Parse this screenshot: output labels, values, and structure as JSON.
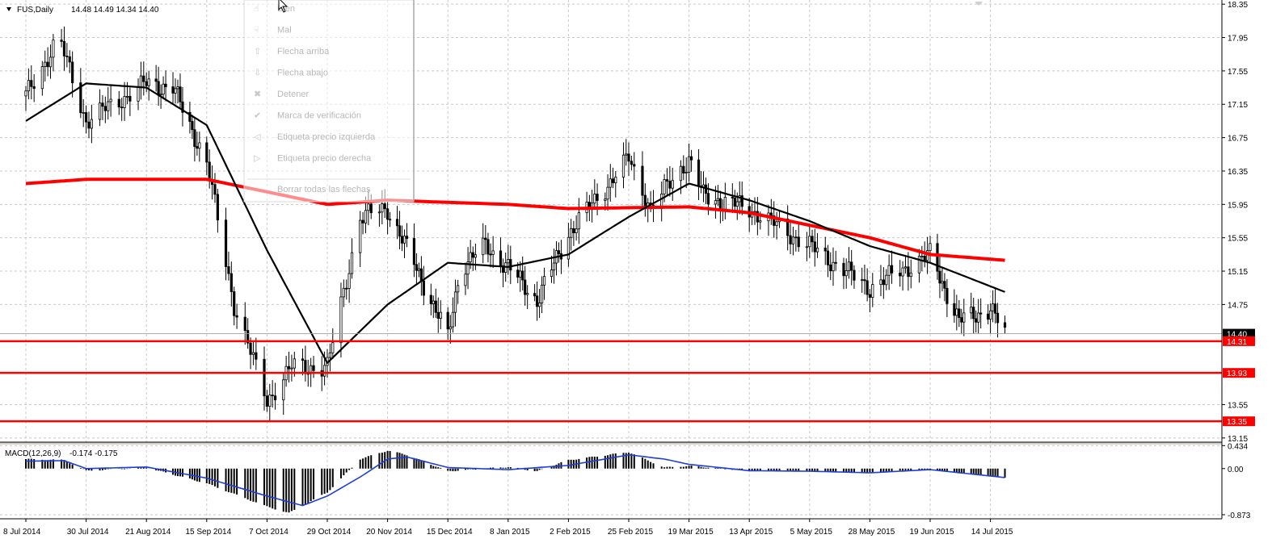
{
  "header": {
    "symbol": "FUS,Daily",
    "ohlc": "14.48 14.49 14.34 14.40",
    "collapse_icon": "triangle-down-icon"
  },
  "overlay_menu": {
    "items": [
      {
        "icon": "thumb-up-icon",
        "label": "Bien"
      },
      {
        "icon": "thumb-down-icon",
        "label": "Mal"
      },
      {
        "icon": "arrow-up-icon",
        "label": "Flecha arriba"
      },
      {
        "icon": "arrow-down-icon",
        "label": "Flecha abajo"
      },
      {
        "icon": "stop-icon",
        "label": "Detener"
      },
      {
        "icon": "check-icon",
        "label": "Marca de verificación"
      },
      {
        "icon": "price-label-left-icon",
        "label": "Etiqueta precio izquierda"
      },
      {
        "icon": "price-label-right-icon",
        "label": "Etiqueta precio derecha"
      },
      {
        "icon": "",
        "label": "Borrar todas las flechas"
      }
    ]
  },
  "chart_data": [
    {
      "type": "candlestick",
      "title": "FUS,Daily",
      "subtitle": "14.48 14.49 14.34 14.40",
      "x_tick_labels": [
        "8 Jul 2014",
        "30 Jul 2014",
        "21 Aug 2014",
        "15 Sep 2014",
        "7 Oct 2014",
        "29 Oct 2014",
        "20 Nov 2014",
        "15 Dec 2014",
        "8 Jan 2015",
        "2 Feb 2015",
        "25 Feb 2015",
        "19 Mar 2015",
        "13 Apr 2015",
        "5 May 2015",
        "28 May 2015",
        "19 Jun 2015",
        "14 Jul 2015"
      ],
      "y_tick_labels": [
        "18.35",
        "17.95",
        "17.55",
        "17.15",
        "16.75",
        "16.35",
        "15.95",
        "15.55",
        "15.15",
        "14.75",
        "14.40",
        "14.31",
        "13.93",
        "13.55",
        "13.35",
        "13.15"
      ],
      "ylim": [
        13.1,
        18.4
      ],
      "grid": true,
      "current_price": 14.4,
      "support_levels": [
        14.31,
        13.93,
        13.35
      ],
      "price_anchors": [
        {
          "x": "8 Jul 2014",
          "value": 17.25
        },
        {
          "x": "20 Jul 2014",
          "value": 17.95
        },
        {
          "x": "30 Jul 2014",
          "value": 16.95
        },
        {
          "x": "21 Aug 2014",
          "value": 17.4
        },
        {
          "x": "1 Sep 2014",
          "value": 17.35
        },
        {
          "x": "15 Sep 2014",
          "value": 16.45
        },
        {
          "x": "25 Sep 2014",
          "value": 14.75
        },
        {
          "x": "7 Oct 2014",
          "value": 13.6
        },
        {
          "x": "16 Oct 2014",
          "value": 14.0
        },
        {
          "x": "29 Oct 2014",
          "value": 14.0
        },
        {
          "x": "10 Nov 2014",
          "value": 15.8
        },
        {
          "x": "20 Nov 2014",
          "value": 15.9
        },
        {
          "x": "5 Dec 2014",
          "value": 15.0
        },
        {
          "x": "15 Dec 2014",
          "value": 14.35
        },
        {
          "x": "20 Dec 2014",
          "value": 15.2
        },
        {
          "x": "30 Dec 2014",
          "value": 15.45
        },
        {
          "x": "8 Jan 2015",
          "value": 15.2
        },
        {
          "x": "20 Jan 2015",
          "value": 14.8
        },
        {
          "x": "2 Feb 2015",
          "value": 15.6
        },
        {
          "x": "25 Feb 2015",
          "value": 16.5
        },
        {
          "x": "5 Mar 2015",
          "value": 15.9
        },
        {
          "x": "19 Mar 2015",
          "value": 16.5
        },
        {
          "x": "25 Mar 2015",
          "value": 16.05
        },
        {
          "x": "13 Apr 2015",
          "value": 15.9
        },
        {
          "x": "5 May 2015",
          "value": 15.45
        },
        {
          "x": "28 May 2015",
          "value": 14.95
        },
        {
          "x": "19 Jun 2015",
          "value": 15.35
        },
        {
          "x": "1 Jul 2015",
          "value": 14.55
        },
        {
          "x": "14 Jul 2015",
          "value": 14.7
        },
        {
          "x": "20 Jul 2015",
          "value": 14.4
        }
      ],
      "moving_average_fast": [
        {
          "x": "8 Jul 2014",
          "value": 16.95
        },
        {
          "x": "30 Jul 2014",
          "value": 17.4
        },
        {
          "x": "21 Aug 2014",
          "value": 17.35
        },
        {
          "x": "15 Sep 2014",
          "value": 16.9
        },
        {
          "x": "7 Oct 2014",
          "value": 15.4
        },
        {
          "x": "29 Oct 2014",
          "value": 14.05
        },
        {
          "x": "20 Nov 2014",
          "value": 14.75
        },
        {
          "x": "15 Dec 2014",
          "value": 15.25
        },
        {
          "x": "8 Jan 2015",
          "value": 15.2
        },
        {
          "x": "2 Feb 2015",
          "value": 15.35
        },
        {
          "x": "25 Feb 2015",
          "value": 15.8
        },
        {
          "x": "19 Mar 2015",
          "value": 16.2
        },
        {
          "x": "13 Apr 2015",
          "value": 16.0
        },
        {
          "x": "5 May 2015",
          "value": 15.75
        },
        {
          "x": "28 May 2015",
          "value": 15.45
        },
        {
          "x": "19 Jun 2015",
          "value": 15.25
        },
        {
          "x": "20 Jul 2015",
          "value": 14.9
        }
      ],
      "moving_average_slow": [
        {
          "x": "8 Jul 2014",
          "value": 16.2
        },
        {
          "x": "30 Jul 2014",
          "value": 16.25
        },
        {
          "x": "15 Sep 2014",
          "value": 16.25
        },
        {
          "x": "29 Oct 2014",
          "value": 15.95
        },
        {
          "x": "20 Nov 2014",
          "value": 16.0
        },
        {
          "x": "8 Jan 2015",
          "value": 15.95
        },
        {
          "x": "2 Feb 2015",
          "value": 15.9
        },
        {
          "x": "19 Mar 2015",
          "value": 15.92
        },
        {
          "x": "13 Apr 2015",
          "value": 15.85
        },
        {
          "x": "5 May 2015",
          "value": 15.7
        },
        {
          "x": "28 May 2015",
          "value": 15.55
        },
        {
          "x": "19 Jun 2015",
          "value": 15.35
        },
        {
          "x": "20 Jul 2015",
          "value": 15.28
        }
      ]
    },
    {
      "type": "bar",
      "title": "MACD(12,26,9)",
      "subtitle": "-0.174 -0.175",
      "y_tick_labels": [
        "0.434",
        "0.00",
        "-0.873"
      ],
      "ylim": [
        -0.95,
        0.5
      ],
      "histogram_anchors": [
        {
          "x": "8 Jul 2014",
          "value": 0.18
        },
        {
          "x": "22 Jul 2014",
          "value": 0.16
        },
        {
          "x": "30 Jul 2014",
          "value": -0.04
        },
        {
          "x": "21 Aug 2014",
          "value": 0.02
        },
        {
          "x": "15 Sep 2014",
          "value": -0.28
        },
        {
          "x": "7 Oct 2014",
          "value": -0.72
        },
        {
          "x": "15 Oct 2014",
          "value": -0.84
        },
        {
          "x": "29 Oct 2014",
          "value": -0.45
        },
        {
          "x": "10 Nov 2014",
          "value": 0.18
        },
        {
          "x": "20 Nov 2014",
          "value": 0.34
        },
        {
          "x": "28 Nov 2014",
          "value": 0.26
        },
        {
          "x": "15 Dec 2014",
          "value": -0.05
        },
        {
          "x": "8 Jan 2015",
          "value": 0.03
        },
        {
          "x": "20 Jan 2015",
          "value": -0.05
        },
        {
          "x": "2 Feb 2015",
          "value": 0.16
        },
        {
          "x": "25 Feb 2015",
          "value": 0.31
        },
        {
          "x": "10 Mar 2015",
          "value": 0.02
        },
        {
          "x": "19 Mar 2015",
          "value": 0.05
        },
        {
          "x": "13 Apr 2015",
          "value": -0.04
        },
        {
          "x": "5 May 2015",
          "value": -0.05
        },
        {
          "x": "28 May 2015",
          "value": -0.08
        },
        {
          "x": "19 Jun 2015",
          "value": -0.02
        },
        {
          "x": "20 Jul 2015",
          "value": -0.17
        }
      ],
      "signal_anchors": [
        {
          "x": "8 Jul 2014",
          "value": 0.14
        },
        {
          "x": "22 Jul 2014",
          "value": 0.15
        },
        {
          "x": "30 Jul 2014",
          "value": 0.0
        },
        {
          "x": "21 Aug 2014",
          "value": 0.03
        },
        {
          "x": "15 Sep 2014",
          "value": -0.18
        },
        {
          "x": "7 Oct 2014",
          "value": -0.52
        },
        {
          "x": "20 Oct 2014",
          "value": -0.7
        },
        {
          "x": "29 Oct 2014",
          "value": -0.52
        },
        {
          "x": "10 Nov 2014",
          "value": -0.16
        },
        {
          "x": "20 Nov 2014",
          "value": 0.18
        },
        {
          "x": "28 Nov 2014",
          "value": 0.22
        },
        {
          "x": "15 Dec 2014",
          "value": 0.02
        },
        {
          "x": "8 Jan 2015",
          "value": -0.02
        },
        {
          "x": "2 Feb 2015",
          "value": 0.06
        },
        {
          "x": "25 Feb 2015",
          "value": 0.26
        },
        {
          "x": "10 Mar 2015",
          "value": 0.18
        },
        {
          "x": "19 Mar 2015",
          "value": 0.08
        },
        {
          "x": "13 Apr 2015",
          "value": -0.04
        },
        {
          "x": "5 May 2015",
          "value": -0.05
        },
        {
          "x": "28 May 2015",
          "value": -0.08
        },
        {
          "x": "19 Jun 2015",
          "value": -0.02
        },
        {
          "x": "20 Jul 2015",
          "value": -0.17
        }
      ]
    }
  ],
  "colors": {
    "background": "#ffffff",
    "grid": "#c8c8c8",
    "axis": "#000000",
    "candle": "#000000",
    "ma_fast": "#000000",
    "ma_slow": "#ff0000",
    "support": "#ff0000",
    "macd_histogram": "#000000",
    "macd_signal": "#1f3fd6",
    "price_tag_current": "#000000",
    "price_tag_support": "#ff0000"
  }
}
